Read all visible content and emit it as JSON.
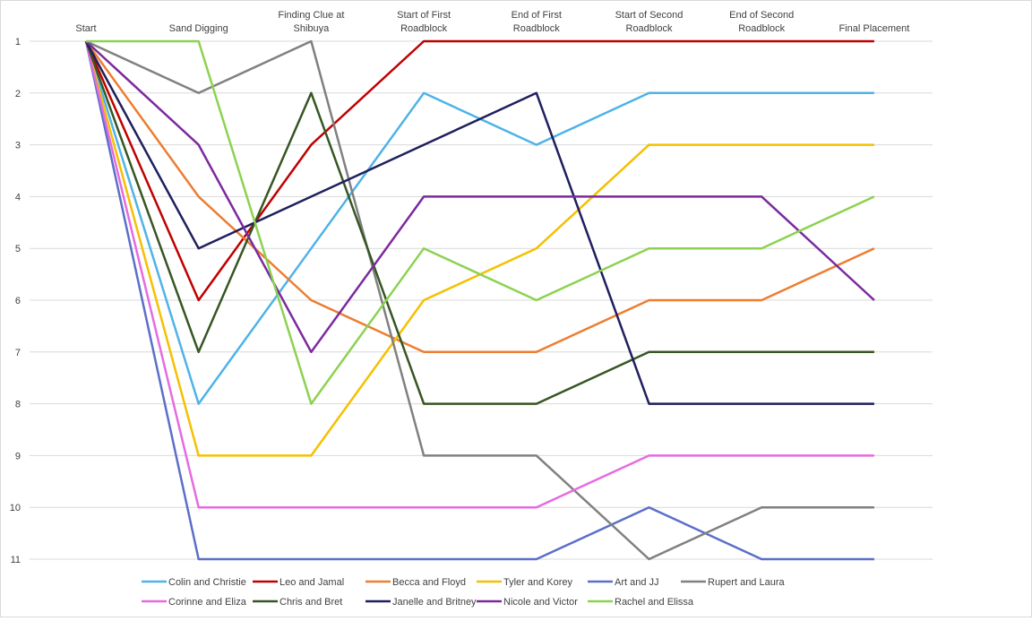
{
  "chart_data": {
    "type": "line",
    "title": "",
    "xlabel": "",
    "ylabel": "",
    "categories": [
      "Start",
      "Sand Digging",
      "Finding Clue at Shibuya",
      "Start of First Roadblock",
      "End of First Roadblock",
      "Start of Second Roadblock",
      "End of Second Roadblock",
      "Final Placement"
    ],
    "y_axis": {
      "min": 1,
      "max": 11,
      "reversed": true,
      "ticks": [
        1,
        2,
        3,
        4,
        5,
        6,
        7,
        8,
        9,
        10,
        11
      ]
    },
    "x_axis_position": "top",
    "grid": true,
    "legend_position": "bottom",
    "series": [
      {
        "name": "Colin and Christie",
        "color": "#4EB3E8",
        "values": [
          1,
          8,
          5,
          2,
          3,
          2,
          2,
          2
        ]
      },
      {
        "name": "Leo and Jamal",
        "color": "#C00000",
        "values": [
          1,
          6,
          3,
          1,
          1,
          1,
          1,
          1
        ]
      },
      {
        "name": "Becca and Floyd",
        "color": "#ED7D31",
        "values": [
          1,
          4,
          6,
          7,
          7,
          6,
          6,
          5
        ]
      },
      {
        "name": "Tyler and Korey",
        "color": "#F5C000",
        "values": [
          1,
          9,
          9,
          6,
          5,
          3,
          3,
          3
        ]
      },
      {
        "name": "Art and JJ",
        "color": "#5B6FC8",
        "values": [
          1,
          11,
          11,
          11,
          11,
          10,
          11,
          11
        ]
      },
      {
        "name": "Rupert and Laura",
        "color": "#808080",
        "values": [
          1,
          2,
          1,
          9,
          9,
          11,
          10,
          10
        ]
      },
      {
        "name": "Corinne and Eliza",
        "color": "#E66BE0",
        "values": [
          1,
          10,
          10,
          10,
          10,
          9,
          9,
          9
        ]
      },
      {
        "name": "Chris and Bret",
        "color": "#375623",
        "values": [
          1,
          7,
          2,
          8,
          8,
          7,
          7,
          7
        ]
      },
      {
        "name": "Janelle and Britney",
        "color": "#1F1F5E",
        "values": [
          1,
          5,
          4,
          3,
          2,
          8,
          8,
          8
        ]
      },
      {
        "name": "Nicole and Victor",
        "color": "#7B2A9E",
        "values": [
          1,
          3,
          7,
          4,
          4,
          4,
          4,
          6
        ]
      },
      {
        "name": "Rachel and Elissa",
        "color": "#8CD250",
        "values": [
          1,
          1,
          8,
          5,
          6,
          5,
          5,
          4
        ]
      }
    ]
  }
}
